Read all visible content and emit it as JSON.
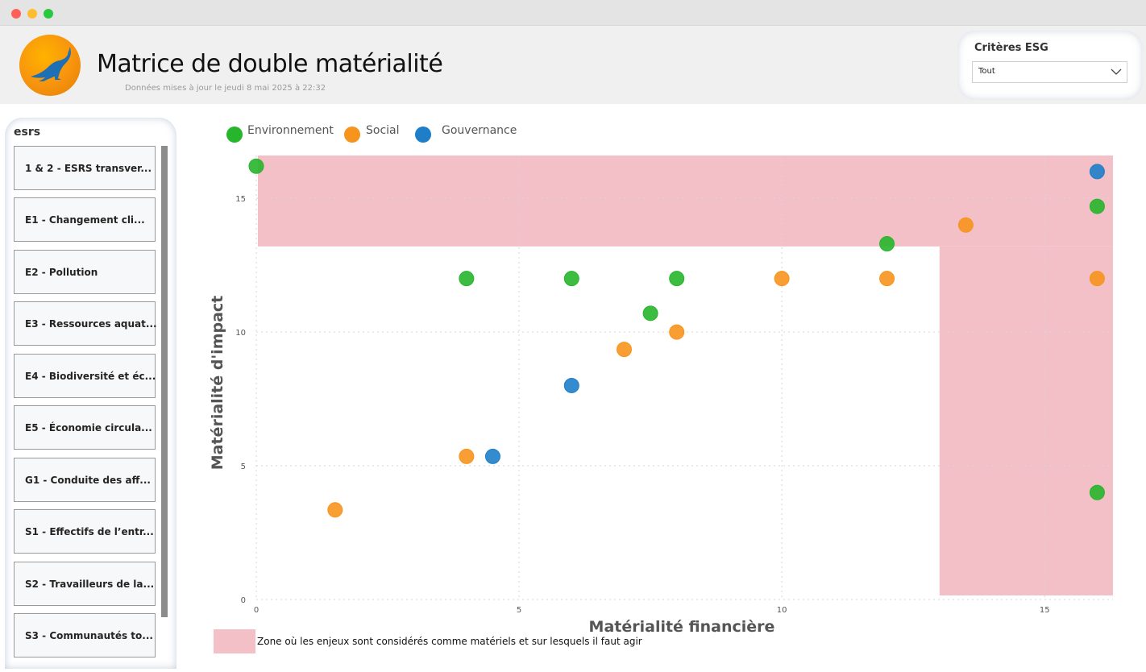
{
  "window": {
    "controls": [
      "close",
      "minimize",
      "zoom"
    ]
  },
  "header": {
    "title": "Matrice de double matérialité",
    "updated": "Données mises à jour le jeudi 8 mai 2025 à 22:32",
    "logo_icon": "kangaroo-logo-icon"
  },
  "filter": {
    "title": "Critères ESG",
    "selected": "Tout",
    "chevron_icon": "chevron-down-icon"
  },
  "slicer": {
    "title": "esrs",
    "items": [
      "1 & 2 - ESRS transver...",
      "E1 - Changement cli...",
      "E2 - Pollution",
      "E3 - Ressources aquat...",
      "E4 - Biodiversité et éc...",
      "E5 - Économie circula...",
      "G1 - Conduite des aff...",
      "S1 - Effectifs de l’entr...",
      "S2 - Travailleurs de la...",
      "S3 - Communautés to..."
    ]
  },
  "legend_note": "Zone où les enjeux sont considérés comme matériels et sur lesquels il faut agir",
  "colors": {
    "Environnement": "#27b52b",
    "Social": "#f7941d",
    "Gouvernance": "#1e7ec8",
    "zone": "#f4c0c8"
  },
  "chart_data": {
    "type": "scatter",
    "xlabel": "Matérialité financière",
    "ylabel": "Matérialité d'impact",
    "xlim": [
      0,
      16.3
    ],
    "ylim": [
      0,
      16.6
    ],
    "xticks": [
      0,
      5,
      10,
      15
    ],
    "yticks": [
      0,
      5,
      10,
      15
    ],
    "grid": true,
    "legend_position": "top-left",
    "zone": {
      "horizontal_band_y_from": 13.2,
      "vertical_band_x_from": 13.0
    },
    "series": [
      {
        "name": "Environnement",
        "points": [
          [
            0,
            16.2
          ],
          [
            4,
            12
          ],
          [
            6,
            12
          ],
          [
            8,
            12
          ],
          [
            7.5,
            10.7
          ],
          [
            12,
            13.3
          ],
          [
            16,
            14.7
          ],
          [
            16,
            4
          ]
        ]
      },
      {
        "name": "Social",
        "points": [
          [
            10,
            12
          ],
          [
            12,
            12
          ],
          [
            13.5,
            14
          ],
          [
            16,
            12
          ],
          [
            8,
            10
          ],
          [
            7,
            9.35
          ],
          [
            4,
            5.35
          ],
          [
            1.5,
            3.35
          ]
        ]
      },
      {
        "name": "Gouvernance",
        "points": [
          [
            16,
            16
          ],
          [
            6,
            8
          ],
          [
            4.5,
            5.35
          ]
        ]
      }
    ]
  }
}
